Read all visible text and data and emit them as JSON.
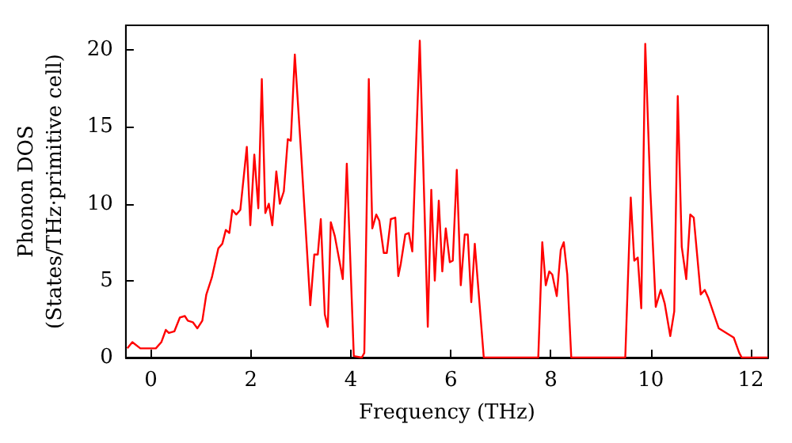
{
  "chart_data": {
    "type": "line",
    "xlabel": "Frequency (THz)",
    "ylabel": "Phonon DOS\n(States/THz·primitive cell)",
    "xlim": [
      -0.5,
      12.35
    ],
    "xticks": [
      0,
      2,
      4,
      6,
      8,
      10,
      12
    ],
    "ylim": [
      0,
      21.6
    ],
    "yticks": [
      0,
      5,
      10,
      15,
      20
    ],
    "grid": false,
    "marker": "none",
    "line_style": "solid",
    "series": [
      {
        "color": "#ff0000",
        "x": [
          -0.47,
          -0.37,
          -0.21,
          0.1,
          0.21,
          0.3,
          0.36,
          0.47,
          0.58,
          0.68,
          0.74,
          0.84,
          0.93,
          1.03,
          1.11,
          1.22,
          1.35,
          1.43,
          1.5,
          1.57,
          1.63,
          1.71,
          1.79,
          1.92,
          1.99,
          2.07,
          2.15,
          2.22,
          2.29,
          2.36,
          2.43,
          2.51,
          2.58,
          2.66,
          2.74,
          2.8,
          2.88,
          3.0,
          3.19,
          3.27,
          3.34,
          3.4,
          3.48,
          3.54,
          3.6,
          3.68,
          3.84,
          3.92,
          4.06,
          4.22,
          4.27,
          4.36,
          4.43,
          4.51,
          4.57,
          4.66,
          4.72,
          4.8,
          4.89,
          4.95,
          5.0,
          5.09,
          5.16,
          5.23,
          5.38,
          5.54,
          5.61,
          5.68,
          5.76,
          5.83,
          5.9,
          5.98,
          6.04,
          6.12,
          6.2,
          6.28,
          6.34,
          6.41,
          6.48,
          6.66,
          7.75,
          7.83,
          7.9,
          7.97,
          8.03,
          8.12,
          8.2,
          8.26,
          8.33,
          8.41,
          9.49,
          9.6,
          9.67,
          9.74,
          9.81,
          9.89,
          9.99,
          10.1,
          10.2,
          10.28,
          10.39,
          10.47,
          10.54,
          10.62,
          10.71,
          10.79,
          10.86,
          11.0,
          11.08,
          11.15,
          11.36,
          11.66,
          11.77,
          11.82,
          12.34
        ],
        "values": [
          0.6,
          1.0,
          0.6,
          0.6,
          1.0,
          1.8,
          1.6,
          1.7,
          2.6,
          2.7,
          2.4,
          2.3,
          1.9,
          2.4,
          4.1,
          5.2,
          7.1,
          7.4,
          8.3,
          8.1,
          9.6,
          9.3,
          9.6,
          13.7,
          8.6,
          13.2,
          9.7,
          18.1,
          9.4,
          10.0,
          8.6,
          12.1,
          10.0,
          10.8,
          14.2,
          14.1,
          19.7,
          13.6,
          3.4,
          6.7,
          6.7,
          9.0,
          2.8,
          2.0,
          8.8,
          7.9,
          5.1,
          12.6,
          0.1,
          0,
          0.3,
          18.1,
          8.4,
          9.3,
          8.9,
          6.8,
          6.8,
          9.0,
          9.1,
          5.3,
          6.1,
          8.0,
          8.1,
          6.9,
          20.6,
          2.0,
          10.9,
          5.0,
          10.2,
          5.6,
          8.4,
          6.2,
          6.3,
          12.2,
          4.7,
          8.0,
          8.0,
          3.6,
          7.4,
          0,
          0,
          7.5,
          4.7,
          5.6,
          5.4,
          4.0,
          7.0,
          7.5,
          5.4,
          0,
          0,
          10.4,
          6.3,
          6.5,
          3.2,
          20.4,
          11,
          3.3,
          4.4,
          3.5,
          1.4,
          3.0,
          17.0,
          7.2,
          5.1,
          9.3,
          9.1,
          4.1,
          4.4,
          3.9,
          1.9,
          1.3,
          0.3,
          0,
          0
        ]
      }
    ]
  }
}
